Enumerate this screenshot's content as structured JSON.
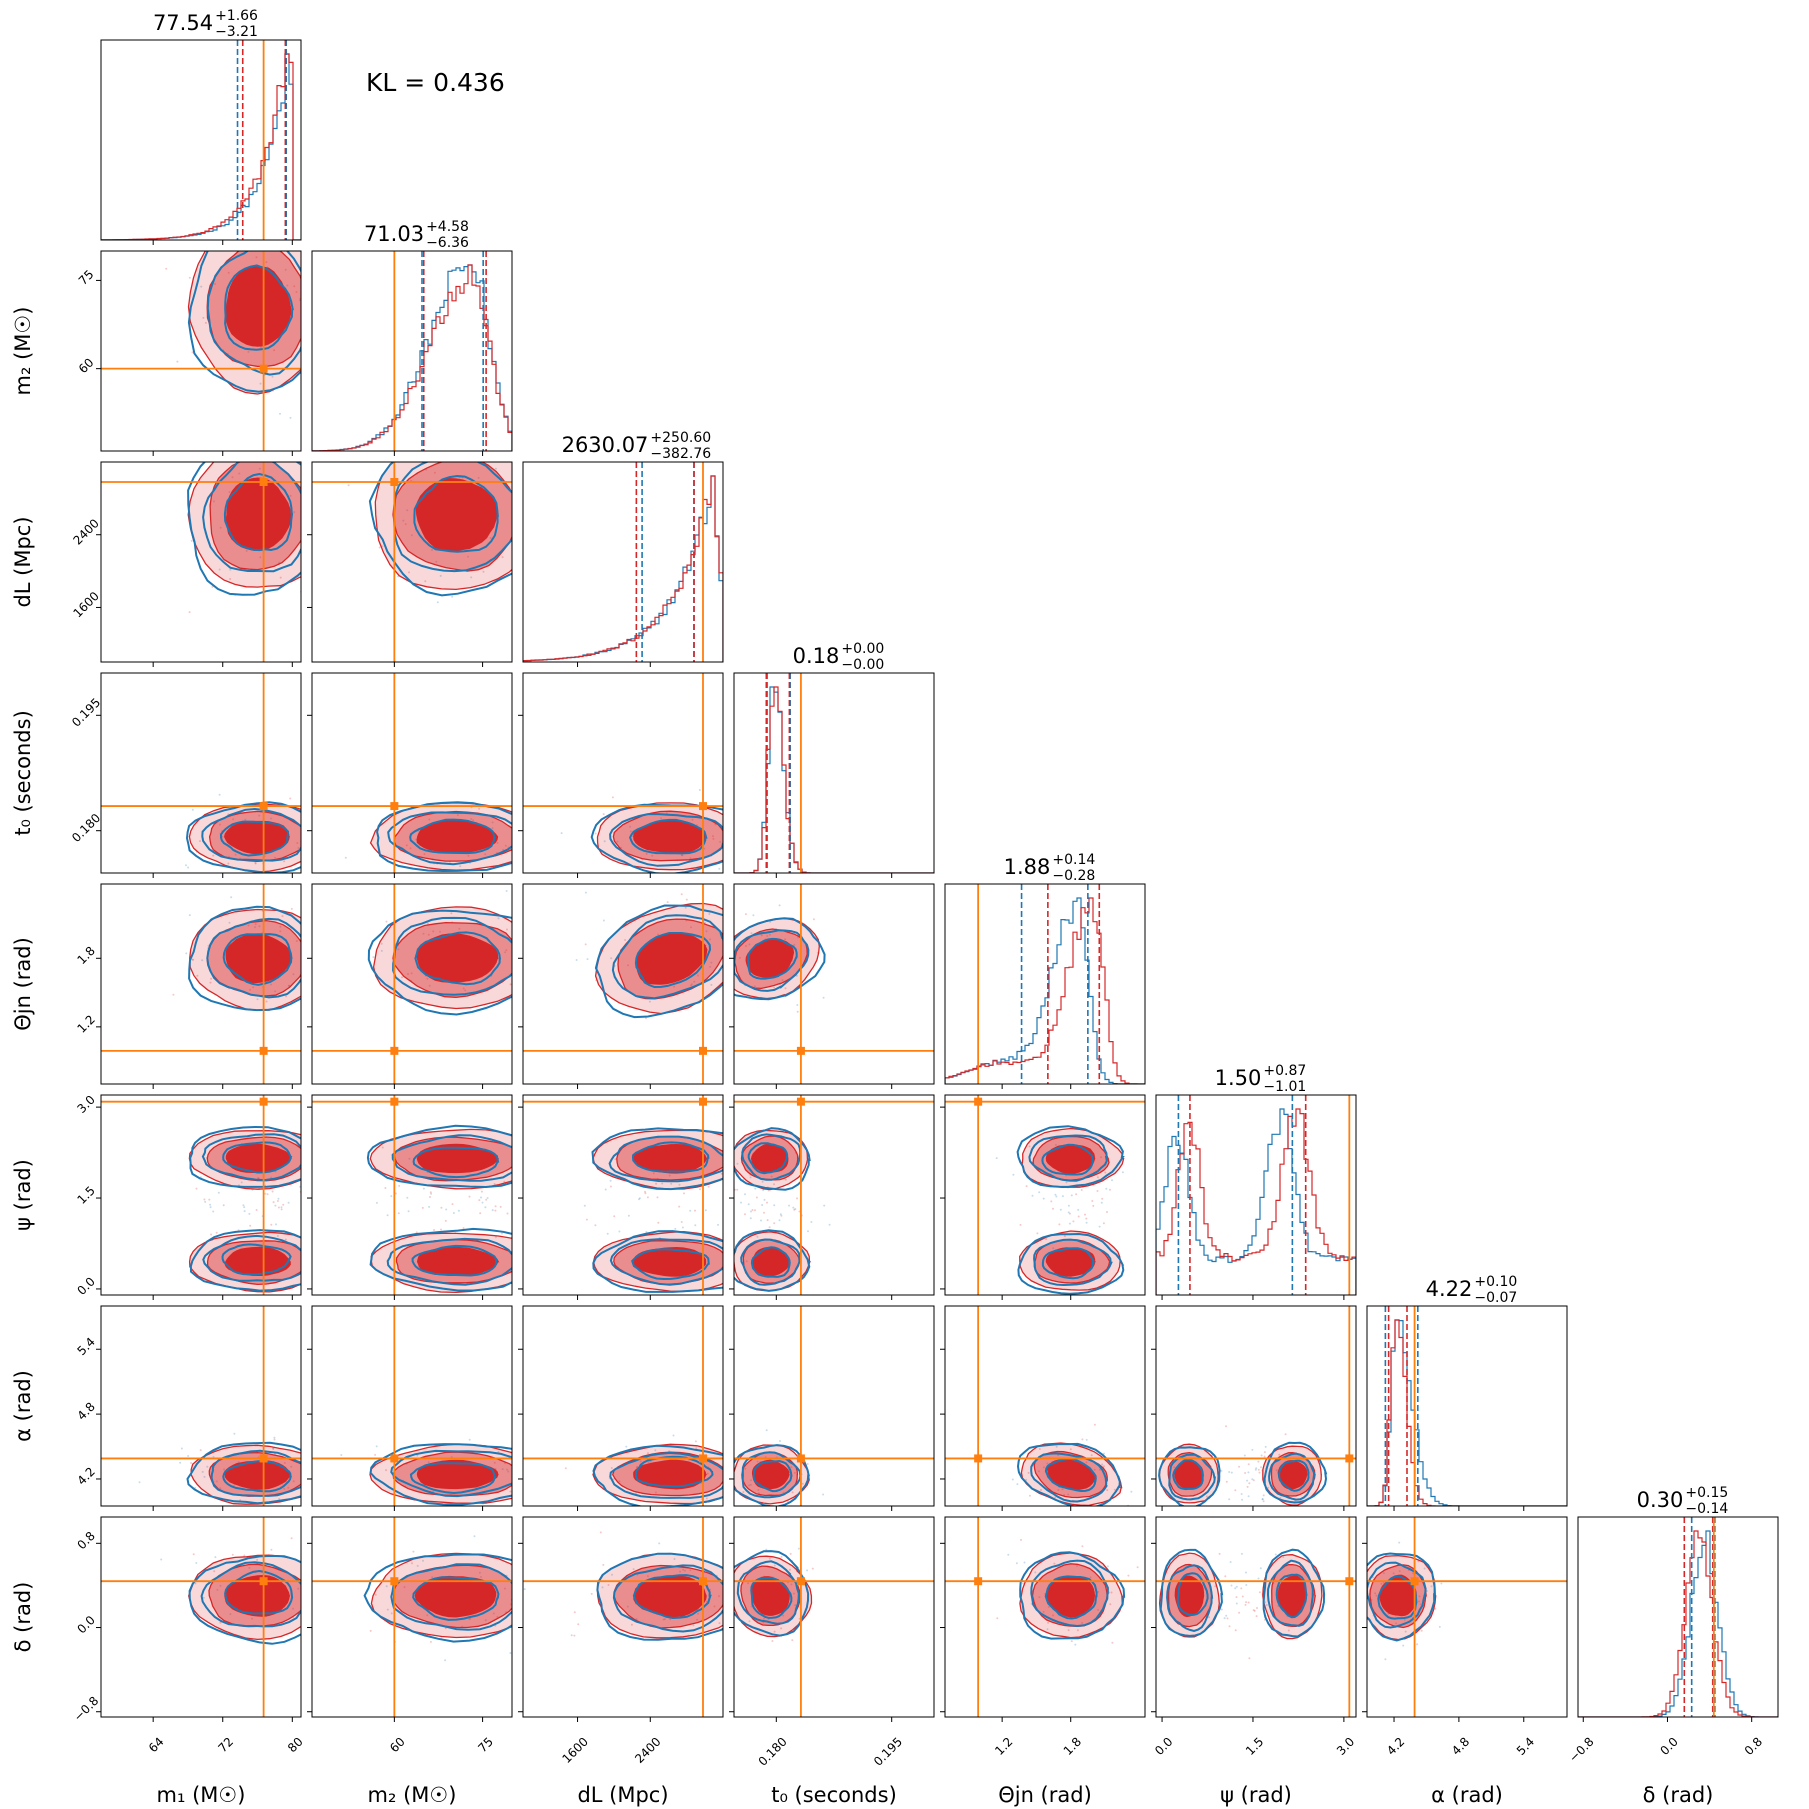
{
  "annotation": {
    "kl_label": "KL = 0.436"
  },
  "colors": {
    "model_a": "#d62728",
    "model_b": "#1f77b4",
    "truth": "#ff7f0e"
  },
  "chart_data": {
    "type": "corner",
    "series": [
      {
        "name": "",
        "color": "#d62728",
        "style": "filled contours + step histogram"
      },
      {
        "name": "",
        "color": "#1f77b4",
        "style": "line contours + step histogram"
      }
    ],
    "parameters": [
      {
        "key": "m1",
        "axis_label": "m₁ (M☉)",
        "range": [
          58,
          81
        ],
        "ticks": [
          "64",
          "72",
          "80"
        ],
        "tick_values": [
          64,
          72,
          80
        ],
        "truth": 76.7,
        "median": "77.54",
        "plus": "+1.66",
        "minus": "−3.21",
        "quantiles_a": [
          74.3,
          79.2
        ],
        "quantiles_b": [
          73.7,
          79.3
        ],
        "peak": 79.4
      },
      {
        "key": "m2",
        "axis_label": "m₂ (M☉)",
        "range": [
          46,
          80
        ],
        "ticks": [
          "60",
          "75"
        ],
        "tick_values": [
          60,
          75
        ],
        "truth": 60.0,
        "median": "71.03",
        "plus": "+4.58",
        "minus": "−6.36",
        "quantiles_a": [
          65.0,
          75.6
        ],
        "quantiles_b": [
          64.7,
          75.1
        ],
        "peak": 73.0
      },
      {
        "key": "dL",
        "axis_label": "dL (Mpc)",
        "range": [
          1000,
          3200
        ],
        "ticks": [
          "1600",
          "2400"
        ],
        "tick_values": [
          1600,
          2400
        ],
        "truth": 2980,
        "median": "2630.07",
        "plus": "+250.60",
        "minus": "−382.76",
        "quantiles_a": [
          2247,
          2881
        ],
        "quantiles_b": [
          2310,
          2881
        ],
        "peak": 2960
      },
      {
        "key": "t0",
        "axis_label": "t₀ (seconds)",
        "range": [
          0.1745,
          0.2005
        ],
        "ticks": [
          "0.180",
          "0.195"
        ],
        "tick_values": [
          0.18,
          0.195
        ],
        "truth": 0.1832,
        "median": "0.18",
        "plus": "+0.00",
        "minus": "−0.00",
        "quantiles_a": [
          0.1787,
          0.1817
        ],
        "quantiles_b": [
          0.1788,
          0.1818
        ],
        "peak": 0.1797
      },
      {
        "key": "theta_jn",
        "axis_label": "Θjn (rad)",
        "range": [
          0.7,
          2.45
        ],
        "ticks": [
          "1.2",
          "1.8"
        ],
        "tick_values": [
          1.2,
          1.8
        ],
        "truth": 0.99,
        "median": "1.88",
        "plus": "+0.14",
        "minus": "−0.28",
        "quantiles_a": [
          1.6,
          2.05
        ],
        "quantiles_b": [
          1.37,
          1.95
        ],
        "peak": 2.0
      },
      {
        "key": "psi",
        "axis_label": "ψ (rad)",
        "range": [
          -0.1,
          3.2
        ],
        "ticks": [
          "0.0",
          "1.5",
          "3.0"
        ],
        "tick_values": [
          0.0,
          1.5,
          3.0
        ],
        "truth": 3.09,
        "median": "1.50",
        "plus": "+0.87",
        "minus": "−1.01",
        "quantiles_a": [
          0.46,
          2.37
        ],
        "quantiles_b": [
          0.27,
          2.15
        ],
        "peak": 2.0
      },
      {
        "key": "alpha",
        "axis_label": "α (rad)",
        "range": [
          3.95,
          5.8
        ],
        "ticks": [
          "4.2",
          "4.8",
          "5.4"
        ],
        "tick_values": [
          4.2,
          4.8,
          5.4
        ],
        "truth": 4.39,
        "median": "4.22",
        "plus": "+0.10",
        "minus": "−0.07",
        "quantiles_a": [
          4.15,
          4.32
        ],
        "quantiles_b": [
          4.12,
          4.42
        ],
        "peak": 4.22
      },
      {
        "key": "delta",
        "axis_label": "δ (rad)",
        "range": [
          -0.85,
          1.05
        ],
        "ticks": [
          "−0.8",
          "0.0",
          "0.8"
        ],
        "tick_values": [
          -0.8,
          0.0,
          0.8
        ],
        "truth": 0.44,
        "median": "0.30",
        "plus": "+0.15",
        "minus": "−0.14",
        "quantiles_a": [
          0.16,
          0.43
        ],
        "quantiles_b": [
          0.23,
          0.45
        ],
        "peak": 0.33
      }
    ]
  }
}
